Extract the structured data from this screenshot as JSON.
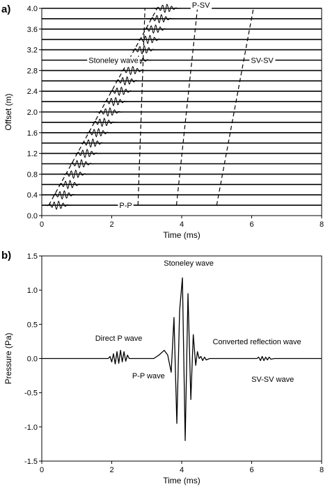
{
  "panels": [
    {
      "label": "a)"
    },
    {
      "label": "b)"
    }
  ],
  "chart_data": [
    {
      "type": "line",
      "subtype": "waveform-gather",
      "xlabel": "Time (ms)",
      "ylabel": "Offset (m)",
      "xlim": [
        0,
        8
      ],
      "ylim": [
        0,
        4.0
      ],
      "x_ticks": [
        "0",
        "2",
        "4",
        "6",
        "8"
      ],
      "y_ticks": [
        "0.0",
        "0.4",
        "0.8",
        "1.2",
        "1.6",
        "2.0",
        "2.4",
        "2.8",
        "3.2",
        "3.6",
        "4.0"
      ],
      "trace_offsets": [
        0.2,
        0.4,
        0.6,
        0.8,
        1.0,
        1.2,
        1.4,
        1.6,
        1.8,
        2.0,
        2.2,
        2.4,
        2.6,
        2.8,
        3.0,
        3.2,
        3.4,
        3.6,
        3.8,
        4.0
      ],
      "arrivals": [
        {
          "label": "Stoneley wave",
          "points": [
            [
              0.2,
              0.2
            ],
            [
              3.3,
              4.0
            ]
          ]
        },
        {
          "label": "P-P",
          "points": [
            [
              2.75,
              0.2
            ],
            [
              2.95,
              4.0
            ]
          ]
        },
        {
          "label": "P-SV",
          "points": [
            [
              3.85,
              0.2
            ],
            [
              4.45,
              4.0
            ]
          ]
        },
        {
          "label": "SV-SV",
          "points": [
            [
              5.0,
              0.2
            ],
            [
              6.05,
              4.0
            ]
          ]
        }
      ],
      "annotations": [
        {
          "text": "Stoneley wave",
          "x": 2.05,
          "y": 3.0
        },
        {
          "text": "P-P",
          "x": 2.4,
          "y": 0.2
        },
        {
          "text": "P-SV",
          "x": 4.55,
          "y": 4.07
        },
        {
          "text": "SV-SV",
          "x": 6.3,
          "y": 3.0
        }
      ]
    },
    {
      "type": "line",
      "subtype": "waveform",
      "xlabel": "Time (ms)",
      "ylabel": "Pressure (Pa)",
      "xlim": [
        0,
        8
      ],
      "ylim": [
        -1.5,
        1.5
      ],
      "x_ticks": [
        "0",
        "2",
        "4",
        "6",
        "8"
      ],
      "y_ticks": [
        "-1.5",
        "-1.0",
        "-0.5",
        "0.0",
        "0.5",
        "1.0",
        "1.5"
      ],
      "series": [
        {
          "values": [
            [
              0,
              0
            ],
            [
              1.9,
              0
            ],
            [
              1.95,
              0.03
            ],
            [
              2.0,
              -0.05
            ],
            [
              2.05,
              0.07
            ],
            [
              2.1,
              -0.08
            ],
            [
              2.15,
              0.1
            ],
            [
              2.2,
              -0.07
            ],
            [
              2.25,
              0.12
            ],
            [
              2.3,
              -0.05
            ],
            [
              2.35,
              0.1
            ],
            [
              2.4,
              -0.04
            ],
            [
              2.45,
              0.05
            ],
            [
              2.5,
              0.0
            ],
            [
              3.2,
              0.0
            ],
            [
              3.35,
              0.05
            ],
            [
              3.5,
              0.12
            ],
            [
              3.6,
              0.05
            ],
            [
              3.7,
              -0.2
            ],
            [
              3.78,
              0.6
            ],
            [
              3.86,
              -0.95
            ],
            [
              3.94,
              0.7
            ],
            [
              4.02,
              1.18
            ],
            [
              4.1,
              -1.2
            ],
            [
              4.18,
              0.95
            ],
            [
              4.26,
              -0.6
            ],
            [
              4.33,
              0.35
            ],
            [
              4.4,
              -0.1
            ],
            [
              4.45,
              0.1
            ],
            [
              4.5,
              0.0
            ],
            [
              4.55,
              0.03
            ],
            [
              4.6,
              -0.03
            ],
            [
              4.65,
              0.02
            ],
            [
              4.7,
              -0.02
            ],
            [
              4.8,
              0.0
            ],
            [
              6.15,
              0.0
            ],
            [
              6.2,
              0.02
            ],
            [
              6.25,
              -0.03
            ],
            [
              6.3,
              0.03
            ],
            [
              6.35,
              -0.03
            ],
            [
              6.4,
              0.02
            ],
            [
              6.45,
              -0.02
            ],
            [
              6.5,
              0.02
            ],
            [
              6.55,
              -0.01
            ],
            [
              6.65,
              0.0
            ],
            [
              8.0,
              0.0
            ]
          ]
        }
      ],
      "annotations": [
        {
          "text": "Stoneley wave",
          "x": 4.2,
          "y": 1.4
        },
        {
          "text": "Direct P wave",
          "x": 2.2,
          "y": 0.3
        },
        {
          "text": "P-P wave",
          "x": 3.05,
          "y": -0.25
        },
        {
          "text": "Converted reflection wave",
          "x": 6.15,
          "y": 0.25
        },
        {
          "text": "SV-SV wave",
          "x": 6.6,
          "y": -0.3
        }
      ]
    }
  ]
}
